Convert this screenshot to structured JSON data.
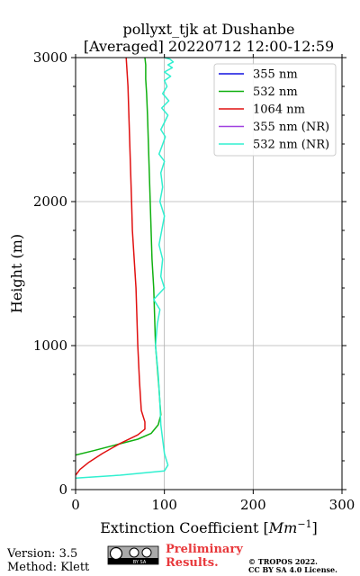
{
  "chart_data": {
    "type": "line",
    "title": "pollyxt_tjk at Dushanbe",
    "subtitle": "[Averaged] 20220712 12:00-12:59",
    "xlabel": "Extinction Coefficient [Mm⁻¹]",
    "ylabel": "Height (m)",
    "xlim": [
      0,
      300
    ],
    "ylim": [
      0,
      3000
    ],
    "xticks": [
      0,
      100,
      200,
      300
    ],
    "yticks": [
      0,
      1000,
      2000,
      3000
    ],
    "grid": true,
    "legend_position": "top-right",
    "series": [
      {
        "name": "355 nm",
        "color": "#1010e0",
        "x": [],
        "y": []
      },
      {
        "name": "532 nm",
        "color": "#10b010",
        "x": [
          0,
          20,
          45,
          70,
          85,
          93,
          96,
          95,
          94,
          92,
          90,
          89,
          88,
          86,
          85,
          84,
          83,
          82,
          81,
          80,
          79,
          79,
          78
        ],
        "y": [
          240,
          270,
          310,
          350,
          390,
          450,
          520,
          600,
          700,
          850,
          1000,
          1200,
          1400,
          1600,
          1800,
          2000,
          2200,
          2400,
          2600,
          2750,
          2850,
          2950,
          3000
        ]
      },
      {
        "name": "1064 nm",
        "color": "#e01010",
        "x": [
          0,
          5,
          15,
          30,
          50,
          70,
          78,
          78,
          74,
          72,
          70,
          69,
          68,
          66,
          64,
          63,
          62,
          61,
          60,
          59,
          58,
          57
        ],
        "y": [
          100,
          140,
          190,
          250,
          320,
          380,
          420,
          470,
          550,
          750,
          1000,
          1200,
          1400,
          1600,
          1800,
          2000,
          2200,
          2400,
          2600,
          2800,
          2900,
          3000
        ]
      },
      {
        "name": "355 nm (NR)",
        "color": "#a040e0",
        "x": [],
        "y": []
      },
      {
        "name": "532 nm (NR)",
        "color": "#30f0d0",
        "x": [
          0,
          50,
          100,
          104,
          100,
          98,
          96,
          95,
          93,
          90,
          92,
          95,
          88,
          100,
          96,
          98,
          94,
          97,
          100,
          95,
          98,
          96,
          100,
          94,
          97,
          101,
          96,
          100,
          104,
          97,
          105,
          98,
          103,
          100,
          107,
          100,
          109,
          104,
          110,
          106,
          100
        ],
        "y": [
          80,
          100,
          130,
          170,
          250,
          350,
          450,
          600,
          800,
          1000,
          1150,
          1250,
          1320,
          1400,
          1480,
          1600,
          1700,
          1800,
          1900,
          2000,
          2100,
          2200,
          2280,
          2330,
          2380,
          2450,
          2500,
          2550,
          2600,
          2650,
          2700,
          2750,
          2800,
          2840,
          2870,
          2900,
          2930,
          2950,
          2970,
          2990,
          3000
        ]
      }
    ]
  },
  "footer": {
    "version": "Version: 3.5",
    "method": "Method: Klett",
    "preliminary_line1": "Preliminary",
    "preliminary_line2": "Results.",
    "copyright_line1": "© TROPOS 2022.",
    "copyright_line2": "CC BY SA 4.0 License.",
    "license_badge_text": "BY SA"
  }
}
